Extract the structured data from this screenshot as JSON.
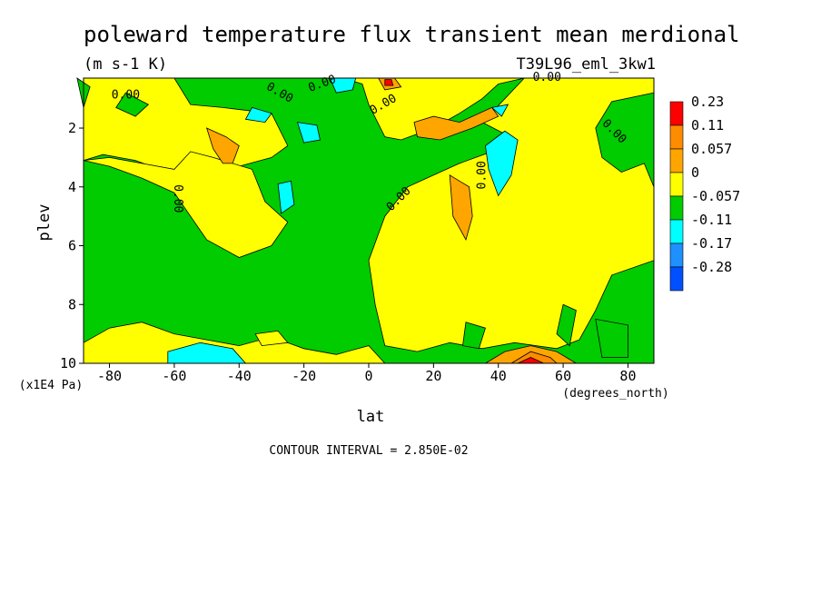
{
  "chart_data": {
    "type": "heatmap",
    "title": "poleward temperature flux transient mean merdional",
    "units": "(m s-1 K)",
    "run_label": "T39L96_eml_3kw1",
    "xlabel": "lat",
    "x_units": "(degrees_north)",
    "ylabel": "plev",
    "y_units": "(x1E4 Pa)",
    "x_ticks": [
      "-80",
      "-60",
      "-40",
      "-20",
      "0",
      "20",
      "40",
      "60",
      "80"
    ],
    "x_tick_values": [
      -80,
      -60,
      -40,
      -20,
      0,
      20,
      40,
      60,
      80
    ],
    "y_ticks": [
      "2",
      "4",
      "6",
      "8",
      "10"
    ],
    "y_tick_values": [
      2,
      4,
      6,
      8,
      10
    ],
    "xlim": [
      -88,
      88
    ],
    "ylim": [
      10,
      0.3
    ],
    "legend": {
      "position": "right",
      "labels": [
        "0.23",
        "0.11",
        "0.057",
        "0",
        "-0.057",
        "-0.11",
        "-0.17",
        "-0.28"
      ],
      "colors": [
        "#ff0000",
        "#ff8c00",
        "#ffa500",
        "#ffff00",
        "#00cc00",
        "#00ffff",
        "#1e90ff",
        "#0050ff"
      ]
    },
    "contour_labels": [
      "0.00",
      "0.00",
      "0.00",
      "0.00",
      "0.00",
      "0.00",
      "0.00",
      "0.00",
      "0.00"
    ],
    "contour_interval_text": "CONTOUR INTERVAL = 2.850E-02",
    "regions": [
      {
        "fill": "#ffff00",
        "pts": [
          [
            -88,
            0.3
          ],
          [
            -60,
            0.3
          ],
          [
            -55,
            1.2
          ],
          [
            -45,
            1.3
          ],
          [
            -30,
            1.5
          ],
          [
            -25,
            2.6
          ],
          [
            -30,
            3.0
          ],
          [
            -40,
            3.3
          ],
          [
            -55,
            3.2
          ],
          [
            -60,
            3.6
          ],
          [
            -72,
            3.1
          ],
          [
            -82,
            2.9
          ],
          [
            -88,
            3.1
          ]
        ]
      },
      {
        "fill": "#ffff00",
        "pts": [
          [
            -88,
            3.1
          ],
          [
            -80,
            3.3
          ],
          [
            -70,
            3.7
          ],
          [
            -60,
            4.2
          ],
          [
            -50,
            5.8
          ],
          [
            -40,
            6.4
          ],
          [
            -30,
            6.0
          ],
          [
            -25,
            5.2
          ],
          [
            -32,
            4.5
          ],
          [
            -36,
            3.4
          ],
          [
            -48,
            3.0
          ],
          [
            -55,
            2.8
          ],
          [
            -60,
            3.4
          ],
          [
            -70,
            3.2
          ],
          [
            -80,
            3.0
          ]
        ]
      },
      {
        "fill": "#ffff00",
        "pts": [
          [
            -8,
            0.3
          ],
          [
            -2,
            0.5
          ],
          [
            0,
            1.2
          ],
          [
            5,
            2.3
          ],
          [
            10,
            2.4
          ],
          [
            20,
            2.0
          ],
          [
            28,
            1.5
          ],
          [
            35,
            1.0
          ],
          [
            40,
            0.5
          ],
          [
            48,
            0.3
          ]
        ]
      },
      {
        "fill": "#ffff00",
        "pts": [
          [
            48,
            0.3
          ],
          [
            88,
            0.3
          ],
          [
            88,
            0.8
          ],
          [
            75,
            1.1
          ],
          [
            70,
            2.0
          ],
          [
            72,
            3.0
          ],
          [
            78,
            3.5
          ],
          [
            85,
            3.2
          ],
          [
            88,
            4.0
          ],
          [
            88,
            6.5
          ],
          [
            75,
            7.0
          ],
          [
            70,
            8.2
          ],
          [
            65,
            9.2
          ],
          [
            58,
            9.5
          ],
          [
            45,
            9.3
          ],
          [
            35,
            9.5
          ],
          [
            25,
            9.3
          ],
          [
            15,
            9.6
          ],
          [
            5,
            9.4
          ],
          [
            2,
            8.0
          ],
          [
            0,
            6.5
          ],
          [
            5,
            5.0
          ],
          [
            12,
            4.0
          ],
          [
            20,
            3.6
          ],
          [
            28,
            3.2
          ],
          [
            38,
            2.8
          ],
          [
            42,
            2.2
          ],
          [
            35,
            1.8
          ],
          [
            42,
            1.0
          ]
        ]
      },
      {
        "fill": "#ffff00",
        "pts": [
          [
            -88,
            9.3
          ],
          [
            -80,
            8.8
          ],
          [
            -70,
            8.6
          ],
          [
            -60,
            9.0
          ],
          [
            -50,
            9.2
          ],
          [
            -40,
            9.4
          ],
          [
            -30,
            9.1
          ],
          [
            -20,
            9.5
          ],
          [
            -10,
            9.7
          ],
          [
            0,
            9.4
          ],
          [
            5,
            10
          ],
          [
            -88,
            10
          ]
        ]
      },
      {
        "fill": "#ffff00",
        "pts": [
          [
            -35,
            9.0
          ],
          [
            -28,
            8.9
          ],
          [
            -25,
            9.3
          ],
          [
            -33,
            9.4
          ]
        ]
      },
      {
        "fill": "#00cc00",
        "pts": [
          [
            60,
            8.0
          ],
          [
            64,
            8.2
          ],
          [
            62,
            9.4
          ],
          [
            58,
            9.0
          ]
        ]
      },
      {
        "fill": "#00cc00",
        "pts": [
          [
            30,
            8.6
          ],
          [
            36,
            8.8
          ],
          [
            34,
            9.5
          ],
          [
            29,
            9.4
          ]
        ]
      },
      {
        "fill": "#00cc00",
        "pts": [
          [
            70,
            8.5
          ],
          [
            80,
            8.7
          ],
          [
            80,
            9.8
          ],
          [
            72,
            9.8
          ]
        ]
      },
      {
        "fill": "#00cc00",
        "pts": [
          [
            -75,
            0.8
          ],
          [
            -68,
            1.2
          ],
          [
            -72,
            1.6
          ],
          [
            -78,
            1.3
          ]
        ]
      },
      {
        "fill": "#00cc00",
        "pts": [
          [
            -90,
            0.3
          ],
          [
            -86,
            0.6
          ],
          [
            -88,
            1.3
          ]
        ]
      },
      {
        "fill": "#ffa500",
        "pts": [
          [
            -50,
            2.0
          ],
          [
            -44,
            2.3
          ],
          [
            -40,
            2.6
          ],
          [
            -42,
            3.2
          ],
          [
            -45,
            3.2
          ],
          [
            -48,
            2.7
          ]
        ]
      },
      {
        "fill": "#ffa500",
        "pts": [
          [
            25,
            3.6
          ],
          [
            31,
            4.0
          ],
          [
            32,
            5.0
          ],
          [
            30,
            5.8
          ],
          [
            26,
            5.0
          ]
        ]
      },
      {
        "fill": "#ffa500",
        "pts": [
          [
            14,
            1.8
          ],
          [
            20,
            1.6
          ],
          [
            28,
            1.8
          ],
          [
            32,
            1.6
          ],
          [
            38,
            1.3
          ],
          [
            40,
            1.6
          ],
          [
            32,
            2.0
          ],
          [
            22,
            2.4
          ],
          [
            15,
            2.3
          ]
        ]
      },
      {
        "fill": "#ffa500",
        "pts": [
          [
            36,
            10
          ],
          [
            42,
            9.6
          ],
          [
            50,
            9.4
          ],
          [
            58,
            9.6
          ],
          [
            64,
            10
          ]
        ]
      },
      {
        "fill": "#ff8c00",
        "pts": [
          [
            44,
            10
          ],
          [
            50,
            9.6
          ],
          [
            56,
            9.8
          ],
          [
            58,
            10
          ]
        ]
      },
      {
        "fill": "#ff0000",
        "pts": [
          [
            46,
            10
          ],
          [
            50,
            9.8
          ],
          [
            54,
            10
          ]
        ]
      },
      {
        "fill": "#ffa500",
        "pts": [
          [
            3,
            0.3
          ],
          [
            8,
            0.3
          ],
          [
            10,
            0.6
          ],
          [
            5,
            0.7
          ]
        ]
      },
      {
        "fill": "#ff0000",
        "pts": [
          [
            5,
            0.35
          ],
          [
            7,
            0.35
          ],
          [
            7.5,
            0.55
          ],
          [
            5,
            0.55
          ]
        ]
      },
      {
        "fill": "#00ffff",
        "pts": [
          [
            -36,
            1.3
          ],
          [
            -30,
            1.5
          ],
          [
            -32,
            1.8
          ],
          [
            -38,
            1.7
          ]
        ]
      },
      {
        "fill": "#00ffff",
        "pts": [
          [
            -22,
            1.8
          ],
          [
            -16,
            1.9
          ],
          [
            -15,
            2.4
          ],
          [
            -20,
            2.5
          ]
        ]
      },
      {
        "fill": "#00ffff",
        "pts": [
          [
            -28,
            3.9
          ],
          [
            -24,
            3.8
          ],
          [
            -23,
            4.6
          ],
          [
            -27,
            4.9
          ]
        ]
      },
      {
        "fill": "#00ffff",
        "pts": [
          [
            -12,
            0.3
          ],
          [
            -4,
            0.3
          ],
          [
            -5,
            0.7
          ],
          [
            -10,
            0.8
          ]
        ]
      },
      {
        "fill": "#00ffff",
        "pts": [
          [
            36,
            2.6
          ],
          [
            42,
            2.1
          ],
          [
            46,
            2.4
          ],
          [
            44,
            3.6
          ],
          [
            40,
            4.3
          ],
          [
            37,
            3.4
          ]
        ]
      },
      {
        "fill": "#00ffff",
        "pts": [
          [
            -62,
            9.6
          ],
          [
            -52,
            9.3
          ],
          [
            -42,
            9.5
          ],
          [
            -38,
            10
          ],
          [
            -62,
            10
          ]
        ]
      },
      {
        "fill": "#00ffff",
        "pts": [
          [
            38,
            1.3
          ],
          [
            43,
            1.2
          ],
          [
            41,
            1.6
          ]
        ]
      }
    ]
  }
}
